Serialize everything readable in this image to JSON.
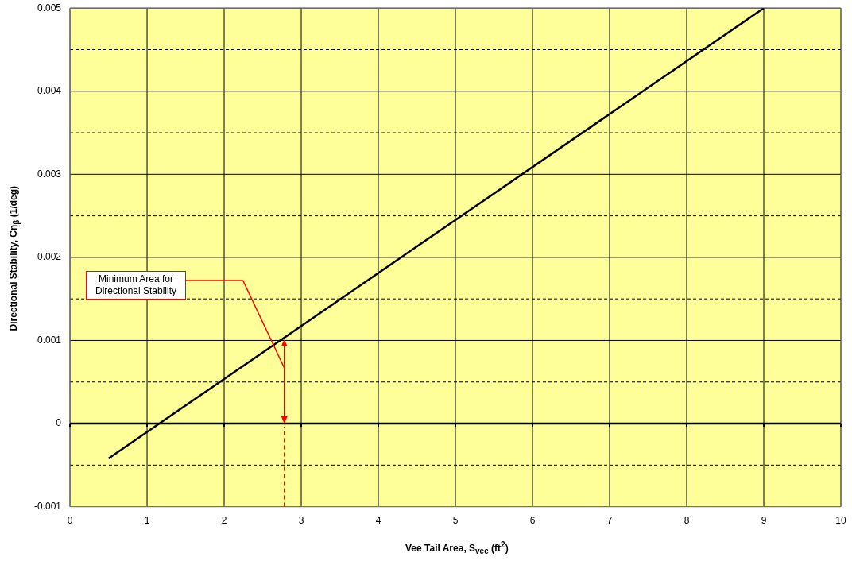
{
  "chart_data": {
    "type": "line",
    "xlabel": "Vee Tail Area, S$_{vee}$ (ft$^{2}$)",
    "ylabel": "Directional Stability, Cn$_{β}$ (1/deg)",
    "series": [
      {
        "x": [
          0.5,
          9
        ],
        "values": [
          -0.00042,
          0.005
        ],
        "color": "#000000"
      }
    ],
    "xlim": [
      0,
      10
    ],
    "xticks": [
      0,
      1,
      2,
      3,
      4,
      5,
      6,
      7,
      8,
      9,
      10
    ],
    "ylim": [
      -0.001,
      0.005
    ],
    "yticks": [
      -0.001,
      {
        "value": -0.0005,
        "label": null
      },
      0,
      {
        "value": 0.0005,
        "label": null
      },
      0.001,
      {
        "value": 0.0015,
        "label": null
      },
      0.002,
      {
        "value": 0.0025,
        "label": null
      },
      0.003,
      {
        "value": 0.0035,
        "label": null
      },
      0.004,
      {
        "value": 0.0045,
        "label": null
      },
      0.005
    ],
    "grid": true,
    "legend": false,
    "marker": "none",
    "line_style": "solid",
    "ref_lines": [
      {
        "axis": "y",
        "value": 0,
        "color": "#000000"
      },
      {
        "axis": "x",
        "value": 2.78,
        "color": "#ff0000",
        "line_style": "dashed"
      }
    ],
    "annotations": [
      "Minimum Area for Directional Stability"
    ]
  }
}
